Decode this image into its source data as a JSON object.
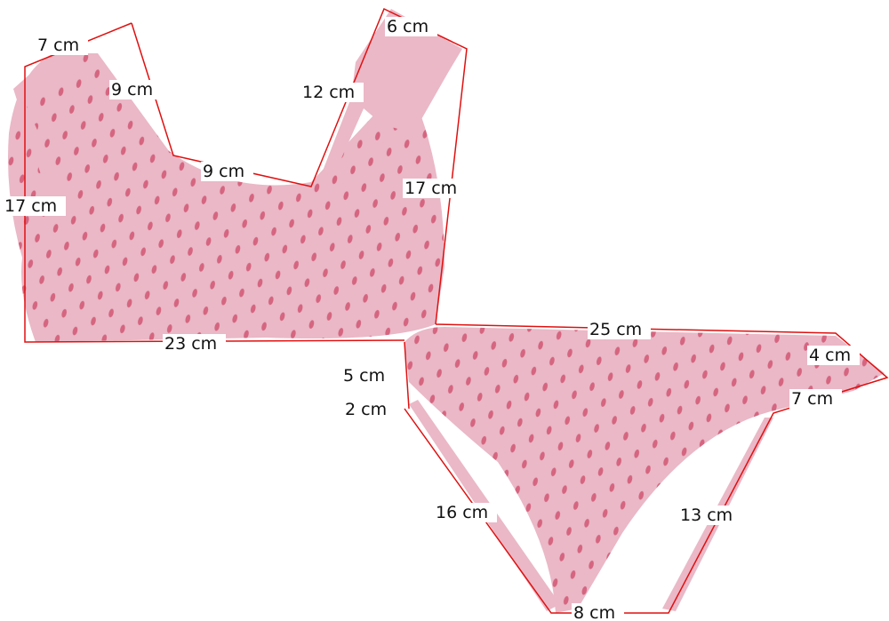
{
  "colors": {
    "fabric": "#e8b4c4",
    "dots": "#d0506e",
    "measure_line": "#e01010",
    "label_bg": "#ffffff"
  },
  "top": {
    "measurements": [
      "7 cm",
      "9 cm",
      "12 cm",
      "6 cm",
      "9 cm",
      "17 cm",
      "17 cm",
      "23 cm"
    ]
  },
  "bottom": {
    "measurements": [
      "25 cm",
      "4 cm",
      "5 cm",
      "2 cm",
      "7 cm",
      "16 cm",
      "13 cm",
      "8 cm"
    ]
  }
}
